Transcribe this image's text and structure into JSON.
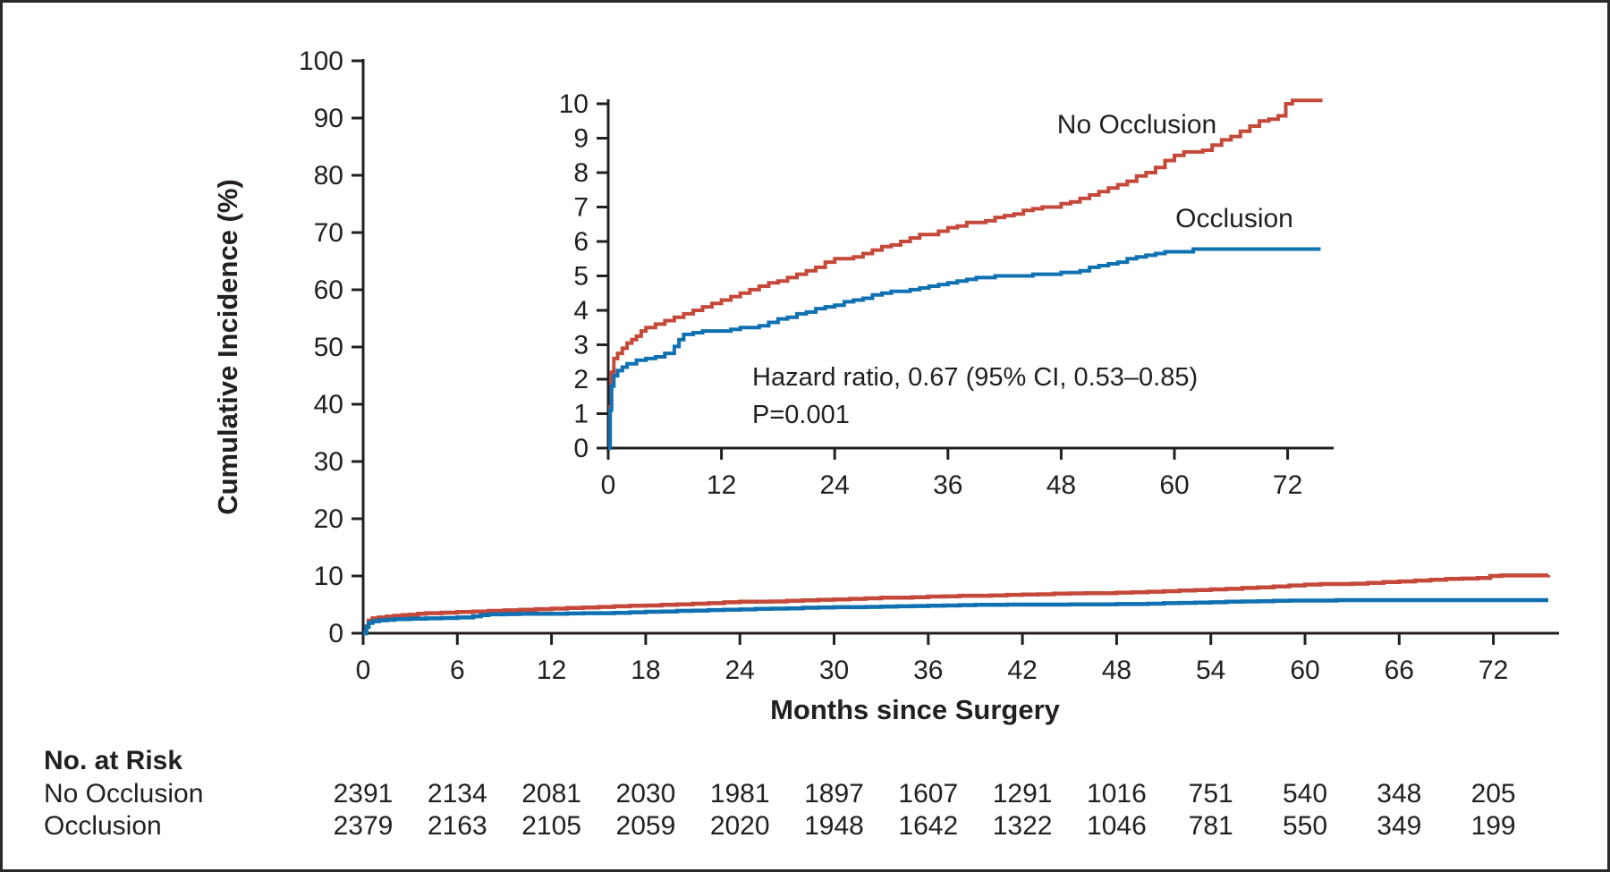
{
  "figure": {
    "background": "#ffffff",
    "border_color": "#2b2b2b",
    "text_color": "#231f20",
    "axis_color": "#231f20"
  },
  "chart_data": {
    "type": "line",
    "subtype": "step-cumulative-incidence",
    "title": "",
    "xlabel": "Months since Surgery",
    "ylabel": "Cumulative Incidence (%)",
    "main_axes": {
      "xlim": [
        0,
        76
      ],
      "ylim": [
        0,
        100
      ],
      "xticks": [
        0,
        6,
        12,
        18,
        24,
        30,
        36,
        42,
        48,
        54,
        60,
        66,
        72
      ],
      "yticks": [
        0,
        10,
        20,
        30,
        40,
        50,
        60,
        70,
        80,
        90,
        100
      ],
      "grid": false,
      "legend_position": "none"
    },
    "inset_axes": {
      "xlim": [
        0,
        77
      ],
      "ylim": [
        0,
        10
      ],
      "xticks": [
        0,
        12,
        24,
        36,
        48,
        60,
        72
      ],
      "yticks": [
        0,
        1,
        2,
        3,
        4,
        5,
        6,
        7,
        8,
        9,
        10
      ],
      "grid": false,
      "annotation_line1": "Hazard ratio, 0.67 (95% CI, 0.53–0.85)",
      "annotation_line2": "P=0.001"
    },
    "series": [
      {
        "name": "No Occlusion",
        "color": "#c5493a",
        "step_points": [
          [
            0,
            0
          ],
          [
            0.2,
            1.2
          ],
          [
            0.35,
            2.2
          ],
          [
            0.6,
            2.6
          ],
          [
            1,
            2.75
          ],
          [
            1.5,
            2.9
          ],
          [
            2,
            3.05
          ],
          [
            2.5,
            3.15
          ],
          [
            3,
            3.25
          ],
          [
            3.5,
            3.4
          ],
          [
            4,
            3.5
          ],
          [
            5,
            3.6
          ],
          [
            6,
            3.7
          ],
          [
            7,
            3.8
          ],
          [
            8,
            3.9
          ],
          [
            9,
            4.0
          ],
          [
            10,
            4.1
          ],
          [
            11,
            4.2
          ],
          [
            12,
            4.3
          ],
          [
            13,
            4.4
          ],
          [
            14,
            4.5
          ],
          [
            15,
            4.6
          ],
          [
            16,
            4.7
          ],
          [
            17,
            4.8
          ],
          [
            18,
            4.85
          ],
          [
            19,
            4.95
          ],
          [
            20,
            5.05
          ],
          [
            21,
            5.15
          ],
          [
            22,
            5.25
          ],
          [
            23,
            5.4
          ],
          [
            24,
            5.5
          ],
          [
            26,
            5.55
          ],
          [
            27,
            5.65
          ],
          [
            28,
            5.75
          ],
          [
            29,
            5.85
          ],
          [
            30,
            5.9
          ],
          [
            31,
            6.0
          ],
          [
            32,
            6.1
          ],
          [
            33,
            6.2
          ],
          [
            35,
            6.3
          ],
          [
            36,
            6.4
          ],
          [
            37,
            6.45
          ],
          [
            38,
            6.55
          ],
          [
            40,
            6.6
          ],
          [
            41,
            6.7
          ],
          [
            42,
            6.75
          ],
          [
            43,
            6.8
          ],
          [
            44,
            6.9
          ],
          [
            45,
            6.95
          ],
          [
            46,
            7.0
          ],
          [
            48,
            7.1
          ],
          [
            49,
            7.15
          ],
          [
            50,
            7.25
          ],
          [
            51,
            7.35
          ],
          [
            52,
            7.45
          ],
          [
            53,
            7.55
          ],
          [
            54,
            7.65
          ],
          [
            55,
            7.75
          ],
          [
            56,
            7.9
          ],
          [
            57,
            8.0
          ],
          [
            58,
            8.15
          ],
          [
            59,
            8.35
          ],
          [
            60,
            8.5
          ],
          [
            61,
            8.6
          ],
          [
            63,
            8.65
          ],
          [
            64,
            8.8
          ],
          [
            65,
            8.95
          ],
          [
            66,
            9.05
          ],
          [
            67,
            9.2
          ],
          [
            68,
            9.35
          ],
          [
            69,
            9.5
          ],
          [
            70,
            9.55
          ],
          [
            71,
            9.65
          ],
          [
            71.8,
            10.0
          ],
          [
            72.5,
            10.1
          ],
          [
            75.5,
            10.15
          ]
        ]
      },
      {
        "name": "Occlusion",
        "color": "#0f70b2",
        "step_points": [
          [
            0,
            0
          ],
          [
            0.2,
            1.1
          ],
          [
            0.35,
            1.8
          ],
          [
            0.6,
            2.1
          ],
          [
            1,
            2.25
          ],
          [
            1.5,
            2.35
          ],
          [
            2,
            2.45
          ],
          [
            3,
            2.55
          ],
          [
            4,
            2.6
          ],
          [
            5,
            2.65
          ],
          [
            6,
            2.75
          ],
          [
            7,
            2.95
          ],
          [
            7.5,
            3.15
          ],
          [
            8,
            3.3
          ],
          [
            9,
            3.35
          ],
          [
            10,
            3.4
          ],
          [
            13,
            3.45
          ],
          [
            14,
            3.5
          ],
          [
            16,
            3.55
          ],
          [
            17,
            3.65
          ],
          [
            18,
            3.75
          ],
          [
            19,
            3.8
          ],
          [
            20,
            3.9
          ],
          [
            21,
            3.95
          ],
          [
            22,
            4.05
          ],
          [
            23,
            4.1
          ],
          [
            24,
            4.15
          ],
          [
            25,
            4.25
          ],
          [
            26,
            4.3
          ],
          [
            27,
            4.35
          ],
          [
            28,
            4.45
          ],
          [
            29,
            4.5
          ],
          [
            30,
            4.55
          ],
          [
            32,
            4.6
          ],
          [
            33,
            4.65
          ],
          [
            34,
            4.7
          ],
          [
            35,
            4.75
          ],
          [
            36,
            4.8
          ],
          [
            37,
            4.85
          ],
          [
            38,
            4.9
          ],
          [
            39,
            4.95
          ],
          [
            41,
            5.0
          ],
          [
            45,
            5.05
          ],
          [
            48,
            5.1
          ],
          [
            50,
            5.15
          ],
          [
            51,
            5.25
          ],
          [
            52,
            5.3
          ],
          [
            53,
            5.35
          ],
          [
            54,
            5.4
          ],
          [
            55,
            5.5
          ],
          [
            56,
            5.55
          ],
          [
            57,
            5.6
          ],
          [
            58,
            5.65
          ],
          [
            59,
            5.7
          ],
          [
            62,
            5.78
          ],
          [
            75.5,
            5.78
          ]
        ]
      }
    ]
  },
  "risk_table": {
    "title": "No. at Risk",
    "months": [
      0,
      6,
      12,
      18,
      24,
      30,
      36,
      42,
      48,
      54,
      60,
      66,
      72
    ],
    "rows": [
      {
        "label": "No Occlusion",
        "values": [
          2391,
          2134,
          2081,
          2030,
          1981,
          1897,
          1607,
          1291,
          1016,
          751,
          540,
          348,
          205
        ]
      },
      {
        "label": "Occlusion",
        "values": [
          2379,
          2163,
          2105,
          2059,
          2020,
          1948,
          1642,
          1322,
          1046,
          781,
          550,
          349,
          199
        ]
      }
    ]
  }
}
